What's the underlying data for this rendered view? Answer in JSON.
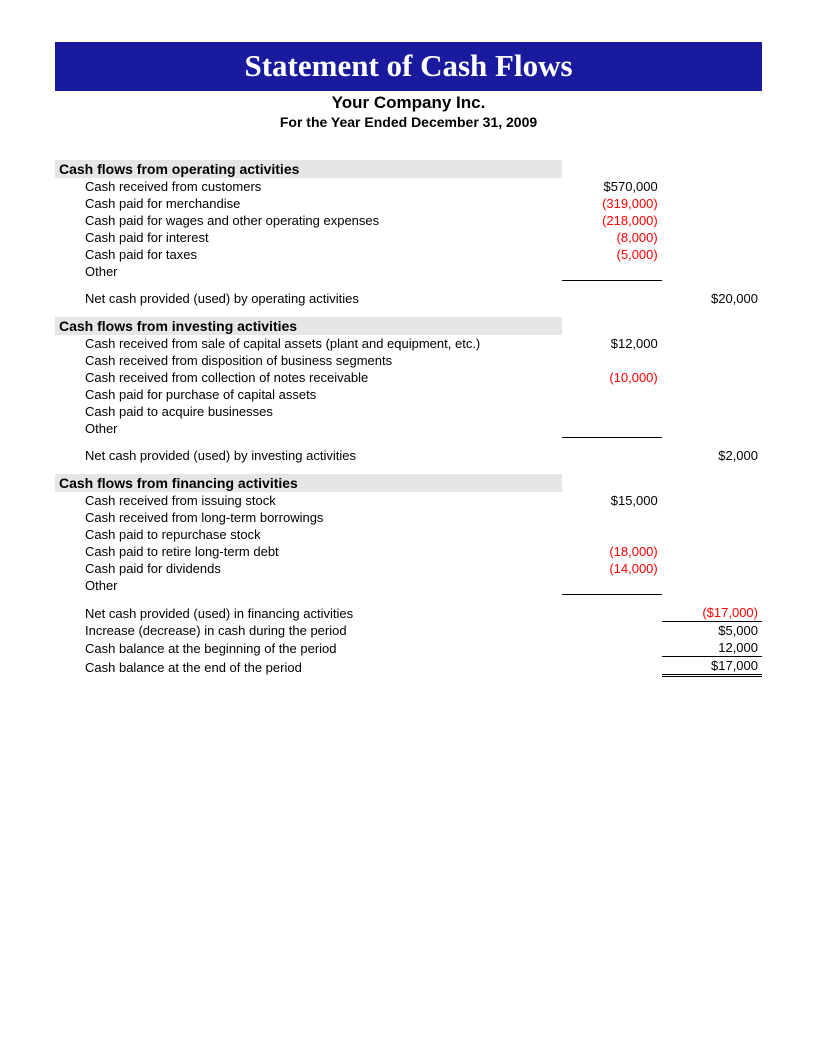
{
  "banner": {
    "title": "Statement of Cash Flows",
    "bg_color": "#1a1a9f",
    "text_color": "#ffffff"
  },
  "header": {
    "company": "Your Company Inc.",
    "period": "For the Year Ended December 31, 2009"
  },
  "sections": {
    "operating": {
      "title": "Cash flows from operating activities",
      "items": [
        {
          "label": "Cash received from customers",
          "amount": "$570,000",
          "negative": false
        },
        {
          "label": "Cash paid for merchandise",
          "amount": "(319,000)",
          "negative": true
        },
        {
          "label": "Cash paid for wages and other operating expenses",
          "amount": "(218,000)",
          "negative": true
        },
        {
          "label": "Cash paid for interest",
          "amount": "(8,000)",
          "negative": true
        },
        {
          "label": "Cash paid for taxes",
          "amount": "(5,000)",
          "negative": true
        },
        {
          "label": "Other",
          "amount": "",
          "negative": false
        }
      ],
      "net_label": "Net cash provided (used) by operating activities",
      "net_total": "$20,000",
      "net_negative": false
    },
    "investing": {
      "title": "Cash flows from investing activities",
      "items": [
        {
          "label": "Cash received from sale of capital assets (plant and equipment, etc.)",
          "amount": "$12,000",
          "negative": false
        },
        {
          "label": "Cash received from disposition of business segments",
          "amount": "",
          "negative": false
        },
        {
          "label": "Cash received from collection of notes receivable",
          "amount": "(10,000)",
          "negative": true
        },
        {
          "label": "Cash paid for purchase of capital assets",
          "amount": "",
          "negative": false
        },
        {
          "label": "Cash paid to acquire businesses",
          "amount": "",
          "negative": false
        },
        {
          "label": "Other",
          "amount": "",
          "negative": false
        }
      ],
      "net_label": "Net cash provided (used) by investing activities",
      "net_total": "$2,000",
      "net_negative": false
    },
    "financing": {
      "title": "Cash flows from financing activities",
      "items": [
        {
          "label": "Cash received from issuing stock",
          "amount": "$15,000",
          "negative": false
        },
        {
          "label": "Cash received from long-term borrowings",
          "amount": "",
          "negative": false
        },
        {
          "label": "Cash paid to repurchase stock",
          "amount": "",
          "negative": false
        },
        {
          "label": "Cash paid to retire long-term debt",
          "amount": "(18,000)",
          "negative": true
        },
        {
          "label": "Cash paid for dividends",
          "amount": "(14,000)",
          "negative": true
        },
        {
          "label": "Other",
          "amount": "",
          "negative": false
        }
      ],
      "net_label": "Net cash provided (used) in financing activities",
      "net_total": "($17,000)",
      "net_negative": true
    }
  },
  "summary": [
    {
      "label": "Increase (decrease) in cash during the period",
      "total": "$5,000",
      "negative": false
    },
    {
      "label": "Cash balance at the beginning of the period",
      "total": "12,000",
      "negative": false
    },
    {
      "label": "Cash balance at the end of the period",
      "total": "$17,000",
      "negative": false
    }
  ],
  "style": {
    "neg_color": "#ff0000",
    "section_bg": "#e6e6e6",
    "font_family": "Arial",
    "base_fontsize_pt": 10
  }
}
